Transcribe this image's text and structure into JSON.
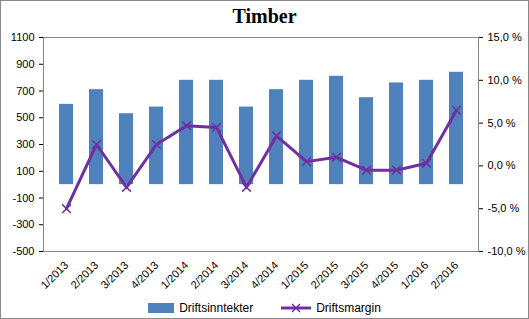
{
  "chart_data": {
    "type": "bar",
    "title": "Timber",
    "categories": [
      "1/2013",
      "2/2013",
      "3/2013",
      "4/2013",
      "1/2014",
      "2/2014",
      "3/2014",
      "4/2014",
      "1/2015",
      "2/2015",
      "3/2015",
      "4/2015",
      "1/2016",
      "2/2016"
    ],
    "series": [
      {
        "name": "Driftsinntekter",
        "type": "bar",
        "color": "#4f81bd",
        "values": [
          600,
          710,
          530,
          580,
          780,
          780,
          580,
          710,
          780,
          810,
          650,
          760,
          780,
          840
        ]
      },
      {
        "name": "Driftsmargin",
        "type": "line",
        "axis": "y2",
        "color": "#7030a0",
        "marker": "x",
        "values": [
          -5.0,
          2.5,
          -2.5,
          2.5,
          4.7,
          4.5,
          -2.5,
          3.5,
          0.5,
          1.0,
          -0.5,
          -0.5,
          0.3,
          6.5
        ]
      }
    ],
    "ylim": [
      -500,
      1100
    ],
    "yticks": [
      -500,
      -300,
      -100,
      100,
      300,
      500,
      700,
      900,
      1100
    ],
    "y2lim": [
      -10,
      15
    ],
    "y2ticks": [
      {
        "value": -10,
        "label": "-10,0 %"
      },
      {
        "value": -5,
        "label": "-5,0 %"
      },
      {
        "value": 0,
        "label": "0,0 %"
      },
      {
        "value": 5,
        "label": "5,0 %"
      },
      {
        "value": 10,
        "label": "10,0 %"
      },
      {
        "value": 15,
        "label": "15,0 %"
      }
    ],
    "grid": false,
    "legend": "bottom"
  }
}
